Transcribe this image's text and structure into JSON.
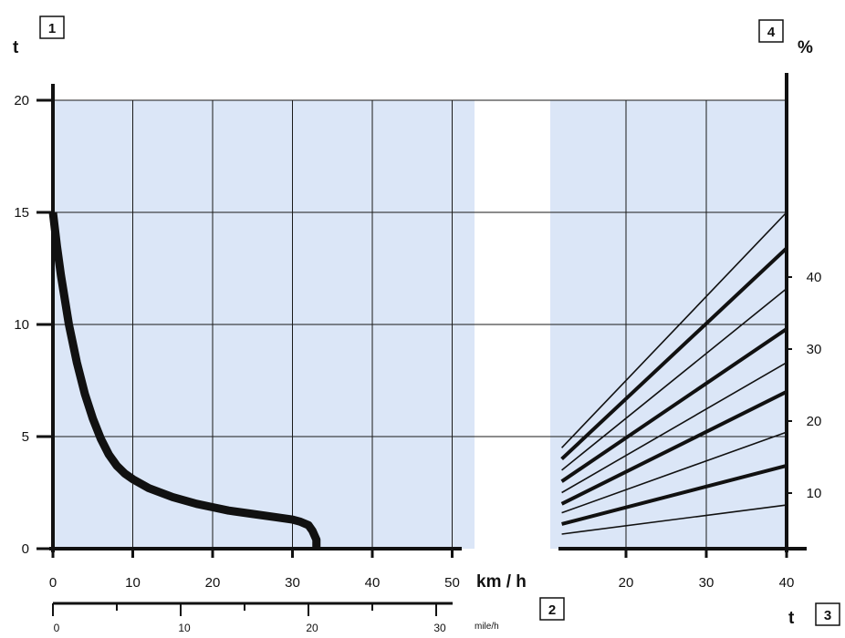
{
  "badges": {
    "b1": "1",
    "b2": "2",
    "b3": "3",
    "b4": "4"
  },
  "units": {
    "left_y": "t",
    "right_y": "%",
    "speed_kmh": "km / h",
    "speed_mph": "mile/h",
    "right_x": "t"
  },
  "colors": {
    "panel": "#dbe6f7",
    "line": "#111111",
    "grid": "#1a1a1a"
  },
  "chart_data": [
    {
      "type": "line",
      "title": "",
      "xlabel": "km / h",
      "ylabel": "t",
      "xlim": [
        0,
        50
      ],
      "ylim": [
        0,
        20
      ],
      "xticks": [
        0,
        10,
        20,
        30,
        40,
        50
      ],
      "yticks": [
        0,
        5,
        10,
        15,
        20
      ],
      "secondary_x": {
        "label": "mile/h",
        "ticks": [
          0,
          10,
          20,
          30
        ]
      },
      "grid": true,
      "series": [
        {
          "x": [
            0,
            0.5,
            1,
            2,
            3,
            4,
            5,
            6,
            7,
            8,
            9,
            10,
            12,
            15,
            18,
            20,
            22,
            25,
            28,
            30,
            31,
            32,
            32.5,
            33,
            33
          ],
          "y": [
            15,
            13.5,
            12.2,
            10.0,
            8.3,
            6.9,
            5.8,
            4.9,
            4.2,
            3.7,
            3.35,
            3.1,
            2.7,
            2.3,
            2.0,
            1.85,
            1.7,
            1.55,
            1.4,
            1.3,
            1.2,
            1.05,
            0.8,
            0.4,
            0
          ]
        }
      ]
    },
    {
      "type": "line",
      "title": "",
      "xlabel": "t",
      "ylabel": "%",
      "xlim": [
        12,
        40
      ],
      "xticks": [
        20,
        30,
        40
      ],
      "yticks_right": [
        10,
        20,
        30,
        40
      ],
      "grid": true,
      "series": [
        {
          "x": [
            12,
            40
          ],
          "y": [
            4.5,
            15
          ]
        },
        {
          "x": [
            12,
            40
          ],
          "y": [
            4.0,
            13.4
          ]
        },
        {
          "x": [
            12,
            40
          ],
          "y": [
            3.5,
            11.6
          ]
        },
        {
          "x": [
            12,
            40
          ],
          "y": [
            3.0,
            9.8
          ]
        },
        {
          "x": [
            12,
            40
          ],
          "y": [
            2.5,
            8.3
          ]
        },
        {
          "x": [
            12,
            40
          ],
          "y": [
            2.0,
            7.0
          ]
        },
        {
          "x": [
            12,
            40
          ],
          "y": [
            1.6,
            5.2
          ]
        },
        {
          "x": [
            12,
            40
          ],
          "y": [
            1.1,
            3.7
          ]
        },
        {
          "x": [
            12,
            40
          ],
          "y": [
            0.65,
            1.95
          ]
        }
      ]
    }
  ]
}
